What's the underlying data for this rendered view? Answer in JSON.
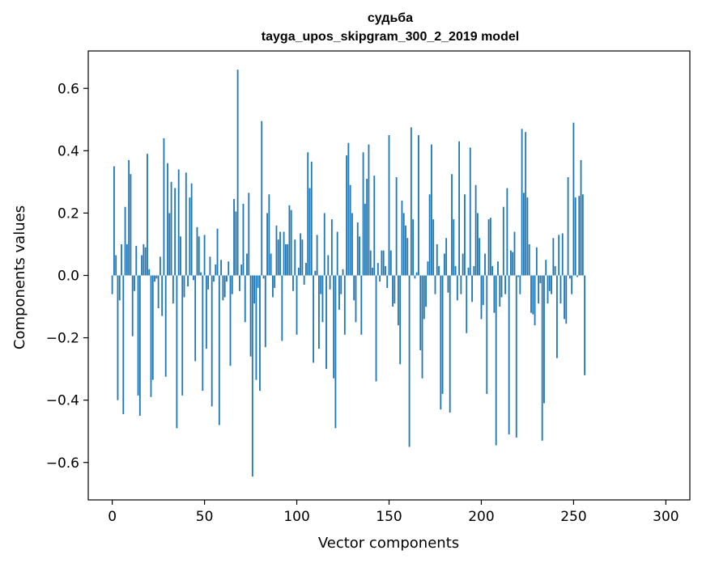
{
  "chart_data": {
    "type": "bar",
    "title": "судьба",
    "subtitle": "tayga_upos_skipgram_300_2_2019 model",
    "xlabel": "Vector components",
    "ylabel": "Components values",
    "xlim": [
      -13,
      313
    ],
    "ylim": [
      -0.72,
      0.72
    ],
    "xticks": [
      0,
      50,
      100,
      150,
      200,
      250,
      300
    ],
    "yticks": [
      -0.6,
      -0.4,
      -0.2,
      0.0,
      0.2,
      0.4,
      0.6
    ],
    "ytick_labels": [
      "−0.6",
      "−0.4",
      "−0.2",
      "0.0",
      "0.2",
      "0.4",
      "0.6"
    ],
    "bar_color": "#1f77b4",
    "grid": false,
    "x_start": 0,
    "values": [
      -0.06,
      0.35,
      0.065,
      -0.4,
      -0.08,
      0.1,
      -0.445,
      0.22,
      0.1,
      0.37,
      0.325,
      -0.195,
      -0.05,
      0.095,
      -0.385,
      -0.45,
      0.065,
      0.1,
      0.09,
      0.39,
      0.02,
      -0.39,
      -0.335,
      -0.02,
      -0.01,
      -0.105,
      0.06,
      -0.13,
      0.44,
      -0.325,
      0.36,
      0.2,
      0.3,
      -0.09,
      0.28,
      -0.49,
      0.34,
      0.125,
      -0.385,
      -0.07,
      0.33,
      -0.035,
      0.25,
      0.295,
      -0.015,
      -0.275,
      0.155,
      0.125,
      0.01,
      -0.37,
      0.13,
      -0.235,
      -0.045,
      0.06,
      -0.42,
      -0.02,
      0.035,
      0.15,
      -0.48,
      0.05,
      -0.08,
      -0.07,
      -0.02,
      0.045,
      -0.29,
      -0.06,
      0.245,
      0.205,
      0.66,
      -0.05,
      0.035,
      0.23,
      -0.15,
      0.07,
      0.265,
      -0.26,
      -0.645,
      -0.09,
      -0.335,
      -0.04,
      -0.37,
      0.495,
      -0.01,
      -0.23,
      0.2,
      0.26,
      0.07,
      -0.07,
      -0.04,
      0.16,
      0.115,
      0.14,
      -0.21,
      0.14,
      0.1,
      0.1,
      0.225,
      0.21,
      -0.05,
      0.115,
      -0.19,
      0.025,
      0.135,
      0.115,
      -0.03,
      0.04,
      0.395,
      0.28,
      0.365,
      -0.28,
      0.015,
      0.13,
      -0.235,
      -0.06,
      -0.15,
      0.2,
      -0.3,
      0.065,
      -0.045,
      0.18,
      -0.33,
      -0.49,
      0.14,
      -0.11,
      -0.06,
      0.02,
      -0.19,
      0.385,
      0.425,
      0.29,
      0.2,
      -0.08,
      -0.15,
      0.17,
      0.125,
      -0.19,
      0.395,
      0.23,
      0.31,
      0.42,
      0.08,
      0.025,
      0.32,
      -0.34,
      0.04,
      -0.02,
      0.08,
      0.08,
      0.03,
      -0.04,
      0.45,
      0.08,
      -0.1,
      -0.09,
      0.315,
      -0.16,
      -0.285,
      0.24,
      0.2,
      0.16,
      0.12,
      -0.55,
      0.475,
      0.18,
      -0.01,
      0.01,
      0.45,
      -0.24,
      -0.33,
      -0.14,
      -0.1,
      0.045,
      0.26,
      0.42,
      0.18,
      -0.06,
      0.1,
      0.03,
      -0.43,
      -0.38,
      0.07,
      0.12,
      -0.055,
      -0.44,
      0.325,
      0.18,
      0.03,
      -0.08,
      0.43,
      -0.06,
      0.07,
      0.26,
      -0.185,
      0.025,
      0.41,
      -0.085,
      0.03,
      0.29,
      0.2,
      0.12,
      -0.14,
      -0.095,
      0.07,
      -0.38,
      0.18,
      0.185,
      0.03,
      -0.12,
      -0.545,
      0.045,
      -0.1,
      -0.07,
      0.22,
      -0.06,
      0.28,
      -0.51,
      0.08,
      0.075,
      0.14,
      -0.52,
      -0.005,
      -0.06,
      0.47,
      0.265,
      0.46,
      0.25,
      0.1,
      -0.12,
      -0.125,
      -0.16,
      0.09,
      -0.09,
      -0.025,
      -0.53,
      -0.41,
      0.05,
      -0.09,
      -0.05,
      -0.06,
      0.12,
      0.03,
      -0.265,
      0.13,
      -0.09,
      0.135,
      -0.14,
      -0.155,
      0.315,
      -0.01,
      -0.06,
      0.49,
      0.25,
      -0.005,
      0.255,
      0.37,
      0.26,
      -0.32
    ]
  }
}
